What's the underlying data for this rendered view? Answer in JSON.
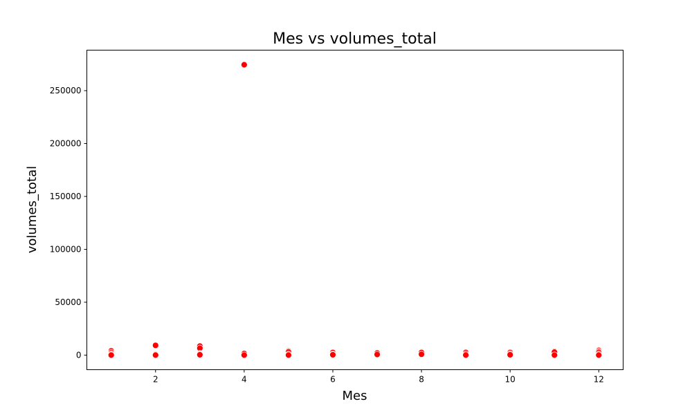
{
  "chart_data": {
    "type": "scatter",
    "title": "Mes vs volumes_total",
    "xlabel": "Mes",
    "ylabel": "volumes_total",
    "xlim": [
      0.45,
      12.55
    ],
    "ylim": [
      -13800,
      288300
    ],
    "xticks": [
      2,
      4,
      6,
      8,
      10,
      12
    ],
    "xtick_labels": [
      "2",
      "4",
      "6",
      "8",
      "10",
      "12"
    ],
    "yticks": [
      0,
      50000,
      100000,
      150000,
      200000,
      250000
    ],
    "ytick_labels": [
      "0",
      "50000",
      "100000",
      "150000",
      "200000",
      "250000"
    ],
    "grid": false,
    "legend": false,
    "marker_color": "#ff0000",
    "marker_edge_color": "#ffffff",
    "x": [
      1,
      1,
      1,
      1,
      1,
      2,
      2,
      2,
      2,
      3,
      3,
      3,
      3,
      3,
      4,
      4,
      4,
      5,
      5,
      5,
      5,
      6,
      6,
      6,
      7,
      7,
      8,
      8,
      9,
      9,
      9,
      10,
      10,
      10,
      11,
      11,
      11,
      12,
      12,
      12,
      12,
      12
    ],
    "y": [
      4000,
      2500,
      1200,
      300,
      0,
      9200,
      1000,
      400,
      0,
      8500,
      6500,
      1500,
      800,
      300,
      274500,
      1500,
      0,
      3800,
      3000,
      800,
      0,
      2500,
      1000,
      300,
      2000,
      600,
      2500,
      800,
      2500,
      1000,
      0,
      2500,
      1200,
      300,
      3500,
      2800,
      0,
      4500,
      3500,
      2500,
      800,
      0
    ]
  }
}
